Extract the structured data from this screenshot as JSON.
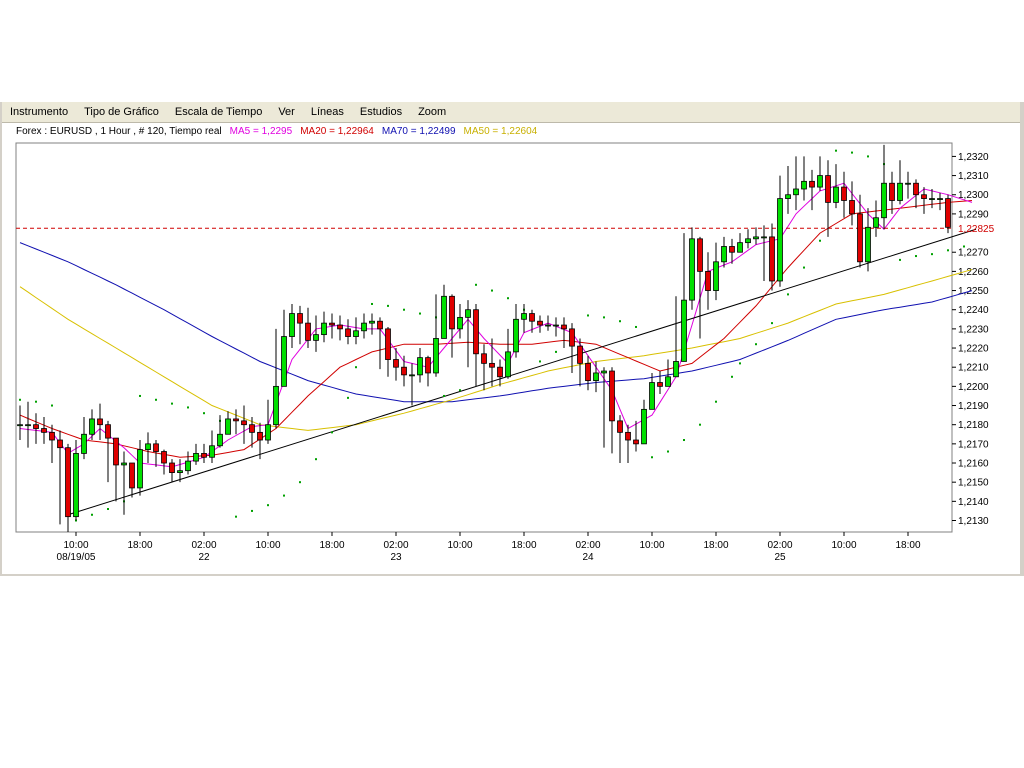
{
  "menu": {
    "items": [
      "Instrumento",
      "Tipo de Gráfico",
      "Escala de Tiempo",
      "Ver",
      "Líneas",
      "Estudios",
      "Zoom"
    ]
  },
  "legend": {
    "title": "Forex : EURUSD , 1 Hour , # 120, Tiempo real",
    "ma5": "MA5 = 1,2295",
    "ma20": "MA20 = 1,22964",
    "ma70": "MA70 = 1,22499",
    "ma50": "MA50 = 1,22604"
  },
  "colors": {
    "up": "#00e000",
    "down": "#e00000",
    "ma5": "#e000e0",
    "ma20": "#d00000",
    "ma70": "#1010b0",
    "ma50": "#d8c000",
    "sar": "#00a000",
    "trend": "#000000",
    "current": "#d00000"
  },
  "chart_data": {
    "type": "candlestick",
    "ylim": [
      1.2124,
      1.2327
    ],
    "y_ticks": [
      "1,2320",
      "1,2310",
      "1,2300",
      "1,2290",
      "1,2270",
      "1,2260",
      "1,2250",
      "1,2240",
      "1,2230",
      "1,2220",
      "1,2210",
      "1,2200",
      "1,2190",
      "1,2180",
      "1,2170",
      "1,2160",
      "1,2150",
      "1,2140",
      "1,2130"
    ],
    "current_price": "1,22825",
    "current_value": 1.22825,
    "x_ticks": [
      {
        "i": 7,
        "label": "10:00",
        "date": "08/19/05"
      },
      {
        "i": 15,
        "label": "18:00",
        "date": ""
      },
      {
        "i": 23,
        "label": "02:00",
        "date": "22"
      },
      {
        "i": 31,
        "label": "10:00",
        "date": ""
      },
      {
        "i": 39,
        "label": "18:00",
        "date": ""
      },
      {
        "i": 47,
        "label": "02:00",
        "date": "23"
      },
      {
        "i": 55,
        "label": "10:00",
        "date": ""
      },
      {
        "i": 63,
        "label": "18:00",
        "date": ""
      },
      {
        "i": 71,
        "label": "02:00",
        "date": "24"
      },
      {
        "i": 79,
        "label": "10:00",
        "date": ""
      },
      {
        "i": 87,
        "label": "18:00",
        "date": ""
      },
      {
        "i": 95,
        "label": "02:00",
        "date": "25"
      },
      {
        "i": 103,
        "label": "10:00",
        "date": ""
      },
      {
        "i": 111,
        "label": "18:00",
        "date": ""
      }
    ],
    "close": [
      1.218,
      1.218,
      1.2178,
      1.2176,
      1.2172,
      1.2168,
      1.2132,
      1.2165,
      1.2175,
      1.2183,
      1.218,
      1.2173,
      1.2159,
      1.216,
      1.2147,
      1.2167,
      1.217,
      1.2166,
      1.216,
      1.2155,
      1.2156,
      1.2161,
      1.2165,
      1.2163,
      1.2169,
      1.2175,
      1.2183,
      1.2182,
      1.218,
      1.2176,
      1.2172,
      1.218,
      1.22,
      1.2226,
      1.2238,
      1.2233,
      1.2224,
      1.2227,
      1.2233,
      1.2232,
      1.223,
      1.2226,
      1.2229,
      1.2233,
      1.2234,
      1.223,
      1.2214,
      1.221,
      1.2206,
      1.2206,
      1.2215,
      1.2207,
      1.2225,
      1.2247,
      1.223,
      1.2236,
      1.224,
      1.2217,
      1.2212,
      1.221,
      1.2205,
      1.2218,
      1.2235,
      1.2238,
      1.2234,
      1.2232,
      1.2232,
      1.2232,
      1.223,
      1.2221,
      1.2212,
      1.2203,
      1.2207,
      1.2208,
      1.2182,
      1.2176,
      1.2172,
      1.217,
      1.2188,
      1.2202,
      1.22,
      1.2205,
      1.2213,
      1.2245,
      1.2277,
      1.226,
      1.225,
      1.2265,
      1.2273,
      1.227,
      1.2275,
      1.2277,
      1.2278,
      1.2278,
      1.2255,
      1.2298,
      1.23,
      1.2303,
      1.2307,
      1.2304,
      1.231,
      1.2296,
      1.2304,
      1.2297,
      1.229,
      1.2265,
      1.2283,
      1.2288,
      1.2306,
      1.2297,
      1.2306,
      1.2306,
      1.23,
      1.2298,
      1.2298,
      1.2298,
      1.2283
    ],
    "high": [
      1.219,
      1.2192,
      1.2186,
      1.2184,
      1.218,
      1.2177,
      1.217,
      1.2172,
      1.2184,
      1.2188,
      1.2191,
      1.2182,
      1.2168,
      1.2166,
      1.2158,
      1.2172,
      1.2176,
      1.2172,
      1.2167,
      1.2162,
      1.2162,
      1.2166,
      1.217,
      1.217,
      1.2177,
      1.2185,
      1.2187,
      1.2188,
      1.219,
      1.2184,
      1.2181,
      1.2193,
      1.223,
      1.224,
      1.2243,
      1.2242,
      1.2241,
      1.2237,
      1.2239,
      1.2238,
      1.2237,
      1.2235,
      1.2236,
      1.2238,
      1.2238,
      1.2236,
      1.2231,
      1.222,
      1.2216,
      1.2212,
      1.222,
      1.2216,
      1.2248,
      1.2253,
      1.2248,
      1.2243,
      1.2245,
      1.2243,
      1.2222,
      1.2225,
      1.2214,
      1.223,
      1.2243,
      1.2243,
      1.224,
      1.2237,
      1.2237,
      1.2236,
      1.2236,
      1.2233,
      1.2225,
      1.2216,
      1.2213,
      1.221,
      1.221,
      1.2185,
      1.218,
      1.2182,
      1.2193,
      1.2207,
      1.2208,
      1.2214,
      1.2247,
      1.228,
      1.2283,
      1.2278,
      1.227,
      1.2275,
      1.2278,
      1.2277,
      1.228,
      1.2282,
      1.2283,
      1.2284,
      1.2285,
      1.231,
      1.2315,
      1.232,
      1.232,
      1.2313,
      1.232,
      1.2318,
      1.2316,
      1.2312,
      1.2307,
      1.23,
      1.2293,
      1.2297,
      1.2326,
      1.2312,
      1.2318,
      1.2312,
      1.2308,
      1.2304,
      1.2303,
      1.2301,
      1.23
    ],
    "low": [
      1.2172,
      1.2168,
      1.217,
      1.217,
      1.216,
      1.2128,
      1.2124,
      1.213,
      1.2162,
      1.2172,
      1.2172,
      1.215,
      1.214,
      1.2133,
      1.2142,
      1.2143,
      1.216,
      1.2158,
      1.2154,
      1.215,
      1.215,
      1.2154,
      1.2159,
      1.216,
      1.216,
      1.2168,
      1.2175,
      1.2175,
      1.217,
      1.2168,
      1.2162,
      1.217,
      1.2178,
      1.22,
      1.222,
      1.2222,
      1.222,
      1.2218,
      1.2223,
      1.2225,
      1.2224,
      1.2222,
      1.2222,
      1.2225,
      1.2227,
      1.2209,
      1.2205,
      1.2203,
      1.22,
      1.219,
      1.2202,
      1.22,
      1.2205,
      1.2225,
      1.2215,
      1.2225,
      1.221,
      1.22,
      1.2198,
      1.22,
      1.22,
      1.2204,
      1.2215,
      1.2228,
      1.2228,
      1.2228,
      1.2229,
      1.2226,
      1.222,
      1.2207,
      1.22,
      1.2198,
      1.2197,
      1.2168,
      1.2165,
      1.216,
      1.216,
      1.2166,
      1.2176,
      1.219,
      1.2196,
      1.22,
      1.2205,
      1.2223,
      1.224,
      1.2225,
      1.224,
      1.2245,
      1.2262,
      1.2264,
      1.227,
      1.2272,
      1.2274,
      1.2255,
      1.225,
      1.2252,
      1.229,
      1.2292,
      1.2297,
      1.2292,
      1.2302,
      1.2278,
      1.2293,
      1.2288,
      1.2284,
      1.2262,
      1.226,
      1.2278,
      1.2282,
      1.229,
      1.2295,
      1.2298,
      1.2293,
      1.229,
      1.2293,
      1.2292,
      1.228
    ],
    "trendline": {
      "from": [
        6,
        1.2133
      ],
      "to": [
        119,
        1.2282
      ]
    },
    "ma5_anchors": [
      [
        0,
        1.2178
      ],
      [
        4,
        1.2176
      ],
      [
        6,
        1.2165
      ],
      [
        8,
        1.217
      ],
      [
        10,
        1.2178
      ],
      [
        13,
        1.2168
      ],
      [
        15,
        1.216
      ],
      [
        19,
        1.2158
      ],
      [
        23,
        1.2163
      ],
      [
        26,
        1.2172
      ],
      [
        29,
        1.2179
      ],
      [
        31,
        1.218
      ],
      [
        34,
        1.2214
      ],
      [
        37,
        1.223
      ],
      [
        40,
        1.2232
      ],
      [
        43,
        1.223
      ],
      [
        45,
        1.223
      ],
      [
        48,
        1.2213
      ],
      [
        51,
        1.221
      ],
      [
        54,
        1.2225
      ],
      [
        56,
        1.2235
      ],
      [
        58,
        1.2225
      ],
      [
        61,
        1.2212
      ],
      [
        63,
        1.2228
      ],
      [
        66,
        1.2233
      ],
      [
        69,
        1.2228
      ],
      [
        72,
        1.221
      ],
      [
        74,
        1.2198
      ],
      [
        76,
        1.2178
      ],
      [
        79,
        1.2185
      ],
      [
        82,
        1.2205
      ],
      [
        84,
        1.2232
      ],
      [
        86,
        1.226
      ],
      [
        89,
        1.2265
      ],
      [
        92,
        1.2274
      ],
      [
        95,
        1.2277
      ],
      [
        97,
        1.229
      ],
      [
        100,
        1.2302
      ],
      [
        103,
        1.2306
      ],
      [
        106,
        1.229
      ],
      [
        108,
        1.2282
      ],
      [
        110,
        1.2293
      ],
      [
        113,
        1.2303
      ],
      [
        116,
        1.23
      ],
      [
        119,
        1.2296
      ]
    ],
    "ma20_anchors": [
      [
        0,
        1.2185
      ],
      [
        4,
        1.2178
      ],
      [
        8,
        1.2172
      ],
      [
        12,
        1.217
      ],
      [
        16,
        1.2166
      ],
      [
        20,
        1.2163
      ],
      [
        24,
        1.2164
      ],
      [
        28,
        1.2167
      ],
      [
        32,
        1.2178
      ],
      [
        36,
        1.2195
      ],
      [
        40,
        1.221
      ],
      [
        44,
        1.2218
      ],
      [
        48,
        1.2222
      ],
      [
        52,
        1.2222
      ],
      [
        56,
        1.2223
      ],
      [
        60,
        1.2222
      ],
      [
        64,
        1.2222
      ],
      [
        68,
        1.2224
      ],
      [
        72,
        1.2222
      ],
      [
        76,
        1.2215
      ],
      [
        80,
        1.2208
      ],
      [
        84,
        1.2212
      ],
      [
        88,
        1.2225
      ],
      [
        92,
        1.2242
      ],
      [
        96,
        1.2262
      ],
      [
        100,
        1.228
      ],
      [
        104,
        1.229
      ],
      [
        108,
        1.2292
      ],
      [
        112,
        1.2294
      ],
      [
        116,
        1.2296
      ],
      [
        119,
        1.2297
      ]
    ],
    "ma70_anchors": [
      [
        0,
        1.2275
      ],
      [
        6,
        1.2265
      ],
      [
        12,
        1.2253
      ],
      [
        18,
        1.224
      ],
      [
        24,
        1.2226
      ],
      [
        30,
        1.2213
      ],
      [
        36,
        1.2203
      ],
      [
        42,
        1.2196
      ],
      [
        48,
        1.2192
      ],
      [
        54,
        1.2192
      ],
      [
        60,
        1.2195
      ],
      [
        66,
        1.2199
      ],
      [
        72,
        1.2202
      ],
      [
        78,
        1.2204
      ],
      [
        84,
        1.2208
      ],
      [
        90,
        1.2214
      ],
      [
        96,
        1.2224
      ],
      [
        102,
        1.2235
      ],
      [
        108,
        1.224
      ],
      [
        114,
        1.2244
      ],
      [
        119,
        1.225
      ]
    ],
    "ma50_anchors": [
      [
        0,
        1.2252
      ],
      [
        6,
        1.2235
      ],
      [
        12,
        1.222
      ],
      [
        18,
        1.2205
      ],
      [
        24,
        1.219
      ],
      [
        30,
        1.218
      ],
      [
        36,
        1.2177
      ],
      [
        42,
        1.218
      ],
      [
        48,
        1.2186
      ],
      [
        54,
        1.2193
      ],
      [
        60,
        1.2201
      ],
      [
        66,
        1.2208
      ],
      [
        72,
        1.2213
      ],
      [
        78,
        1.2216
      ],
      [
        84,
        1.222
      ],
      [
        90,
        1.2225
      ],
      [
        96,
        1.2233
      ],
      [
        102,
        1.2243
      ],
      [
        108,
        1.2248
      ],
      [
        114,
        1.2255
      ],
      [
        119,
        1.2261
      ]
    ],
    "sar": [
      [
        0,
        1.2193
      ],
      [
        2,
        1.2192
      ],
      [
        4,
        1.219
      ],
      [
        7,
        1.213
      ],
      [
        9,
        1.2133
      ],
      [
        11,
        1.2136
      ],
      [
        13,
        1.214
      ],
      [
        15,
        1.2195
      ],
      [
        17,
        1.2193
      ],
      [
        19,
        1.2191
      ],
      [
        21,
        1.2189
      ],
      [
        23,
        1.2186
      ],
      [
        25,
        1.2182
      ],
      [
        27,
        1.2132
      ],
      [
        29,
        1.2135
      ],
      [
        31,
        1.2138
      ],
      [
        33,
        1.2143
      ],
      [
        35,
        1.215
      ],
      [
        37,
        1.2162
      ],
      [
        39,
        1.2176
      ],
      [
        41,
        1.2194
      ],
      [
        42,
        1.221
      ],
      [
        44,
        1.2243
      ],
      [
        46,
        1.2242
      ],
      [
        48,
        1.224
      ],
      [
        50,
        1.2238
      ],
      [
        52,
        1.2236
      ],
      [
        53,
        1.2195
      ],
      [
        55,
        1.2198
      ],
      [
        57,
        1.2253
      ],
      [
        59,
        1.225
      ],
      [
        61,
        1.2246
      ],
      [
        63,
        1.224
      ],
      [
        65,
        1.2213
      ],
      [
        67,
        1.2218
      ],
      [
        69,
        1.2223
      ],
      [
        71,
        1.2237
      ],
      [
        73,
        1.2236
      ],
      [
        75,
        1.2234
      ],
      [
        77,
        1.2231
      ],
      [
        79,
        1.2163
      ],
      [
        81,
        1.2166
      ],
      [
        83,
        1.2172
      ],
      [
        85,
        1.218
      ],
      [
        87,
        1.2192
      ],
      [
        89,
        1.2205
      ],
      [
        90,
        1.2212
      ],
      [
        92,
        1.2222
      ],
      [
        94,
        1.2233
      ],
      [
        96,
        1.2248
      ],
      [
        98,
        1.2262
      ],
      [
        100,
        1.2276
      ],
      [
        102,
        1.2323
      ],
      [
        104,
        1.2322
      ],
      [
        106,
        1.232
      ],
      [
        108,
        1.2316
      ],
      [
        110,
        1.2266
      ],
      [
        112,
        1.2268
      ],
      [
        114,
        1.2269
      ],
      [
        116,
        1.2271
      ],
      [
        118,
        1.2273
      ]
    ]
  }
}
